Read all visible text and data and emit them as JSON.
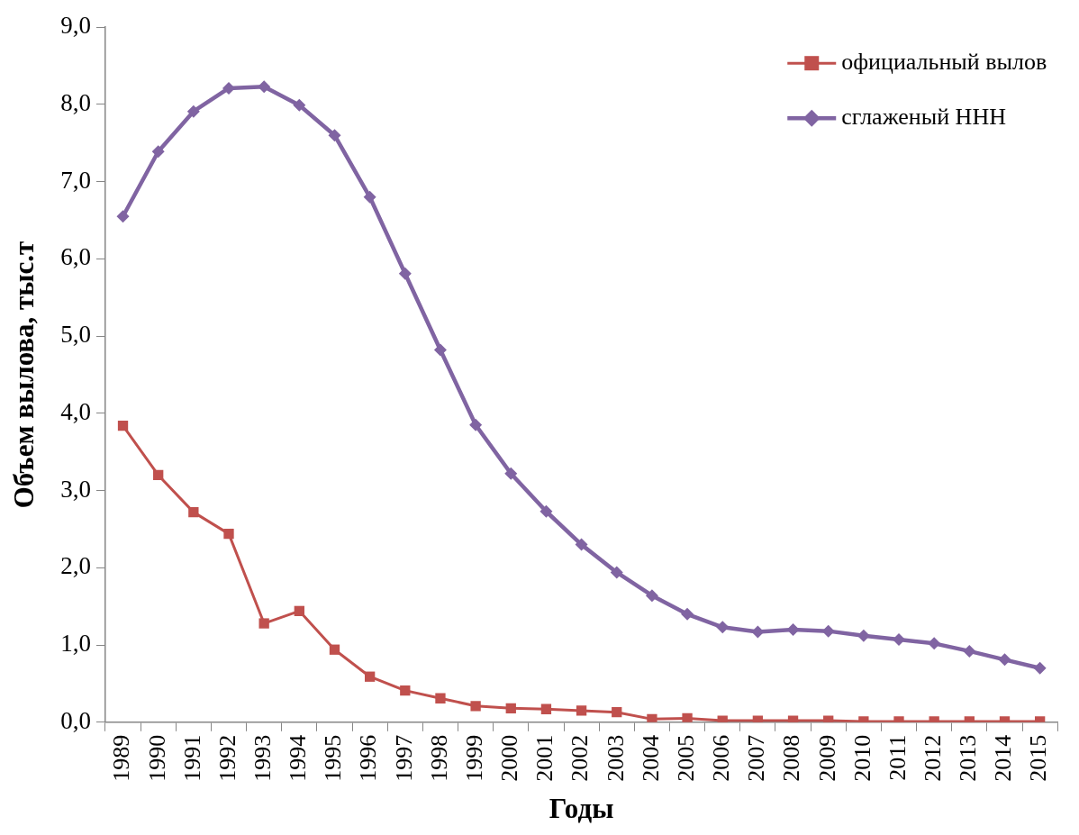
{
  "chart_data": {
    "type": "line",
    "xlabel": "Годы",
    "ylabel": "Объем вылова, тыс.т",
    "categories": [
      "1989",
      "1990",
      "1991",
      "1992",
      "1993",
      "1994",
      "1995",
      "1996",
      "1997",
      "1998",
      "1999",
      "2000",
      "2001",
      "2002",
      "2003",
      "2004",
      "2005",
      "2006",
      "2007",
      "2008",
      "2009",
      "2010",
      "2011",
      "2012",
      "2013",
      "2014",
      "2015"
    ],
    "series": [
      {
        "name": "официальный вылов",
        "color": "#c0504d",
        "marker": "square",
        "values": [
          3.84,
          3.2,
          2.72,
          2.44,
          1.28,
          1.44,
          0.94,
          0.59,
          0.41,
          0.31,
          0.21,
          0.18,
          0.17,
          0.15,
          0.13,
          0.04,
          0.05,
          0.02,
          0.02,
          0.02,
          0.02,
          0.01,
          0.01,
          0.01,
          0.01,
          0.01,
          0.01
        ]
      },
      {
        "name": "сглаженый ННН",
        "color": "#8064a2",
        "marker": "diamond",
        "values": [
          6.55,
          7.39,
          7.91,
          8.21,
          8.23,
          7.99,
          7.6,
          6.8,
          5.81,
          4.82,
          3.85,
          3.22,
          2.73,
          2.3,
          1.94,
          1.64,
          1.4,
          1.23,
          1.17,
          1.2,
          1.18,
          1.12,
          1.07,
          1.02,
          0.92,
          0.81,
          0.7
        ]
      }
    ],
    "ylim": [
      0,
      9
    ],
    "yticks": [
      {
        "value": 0,
        "label": "0,0"
      },
      {
        "value": 1,
        "label": "1,0"
      },
      {
        "value": 2,
        "label": "2,0"
      },
      {
        "value": 3,
        "label": "3,0"
      },
      {
        "value": 4,
        "label": "4,0"
      },
      {
        "value": 5,
        "label": "5,0"
      },
      {
        "value": 6,
        "label": "6,0"
      },
      {
        "value": 7,
        "label": "7,0"
      },
      {
        "value": 8,
        "label": "8,0"
      },
      {
        "value": 9,
        "label": "9,0"
      }
    ],
    "legend": "top right",
    "line_style": "solid"
  }
}
